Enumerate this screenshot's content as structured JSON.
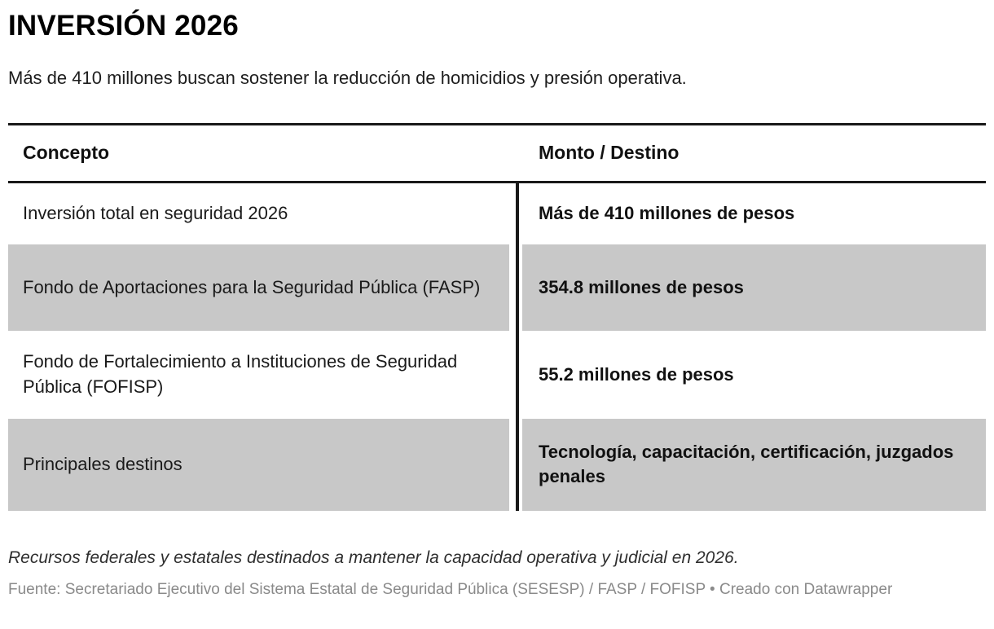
{
  "chart_data": {
    "type": "table",
    "title": "INVERSIÓN 2026",
    "subtitle": "Más de 410 millones buscan sostener la reducción de homicidios y presión operativa.",
    "columns": [
      "Concepto",
      "Monto / Destino"
    ],
    "rows": [
      [
        "Inversión total en seguridad 2026",
        "Más de 410 millones de pesos"
      ],
      [
        "Fondo de Aportaciones para la Seguridad Pública (FASP)",
        "354.8 millones de pesos"
      ],
      [
        "Fondo de Fortalecimiento a Instituciones de Seguridad Pública (FOFISP)",
        "55.2 millones de pesos"
      ],
      [
        "Principales destinos",
        "Tecnología, capacitación, certificación, juzgados penales"
      ]
    ],
    "row_shading": [
      false,
      true,
      false,
      true
    ],
    "note": "Recursos federales y estatales destinados a mantener la capacidad operativa y judicial en 2026.",
    "source": "Fuente: Secretariado Ejecutivo del Sistema Estatal de Seguridad Pública (SESESP) / FASP / FOFISP • Creado con Datawrapper",
    "layout_hints": {
      "legend": "none",
      "grid": "horizontal-rules-and-column-divider",
      "shaded_row_color": "#c8c8c8",
      "rule_color": "#181818",
      "source_text_color": "#8a8a8a"
    }
  }
}
